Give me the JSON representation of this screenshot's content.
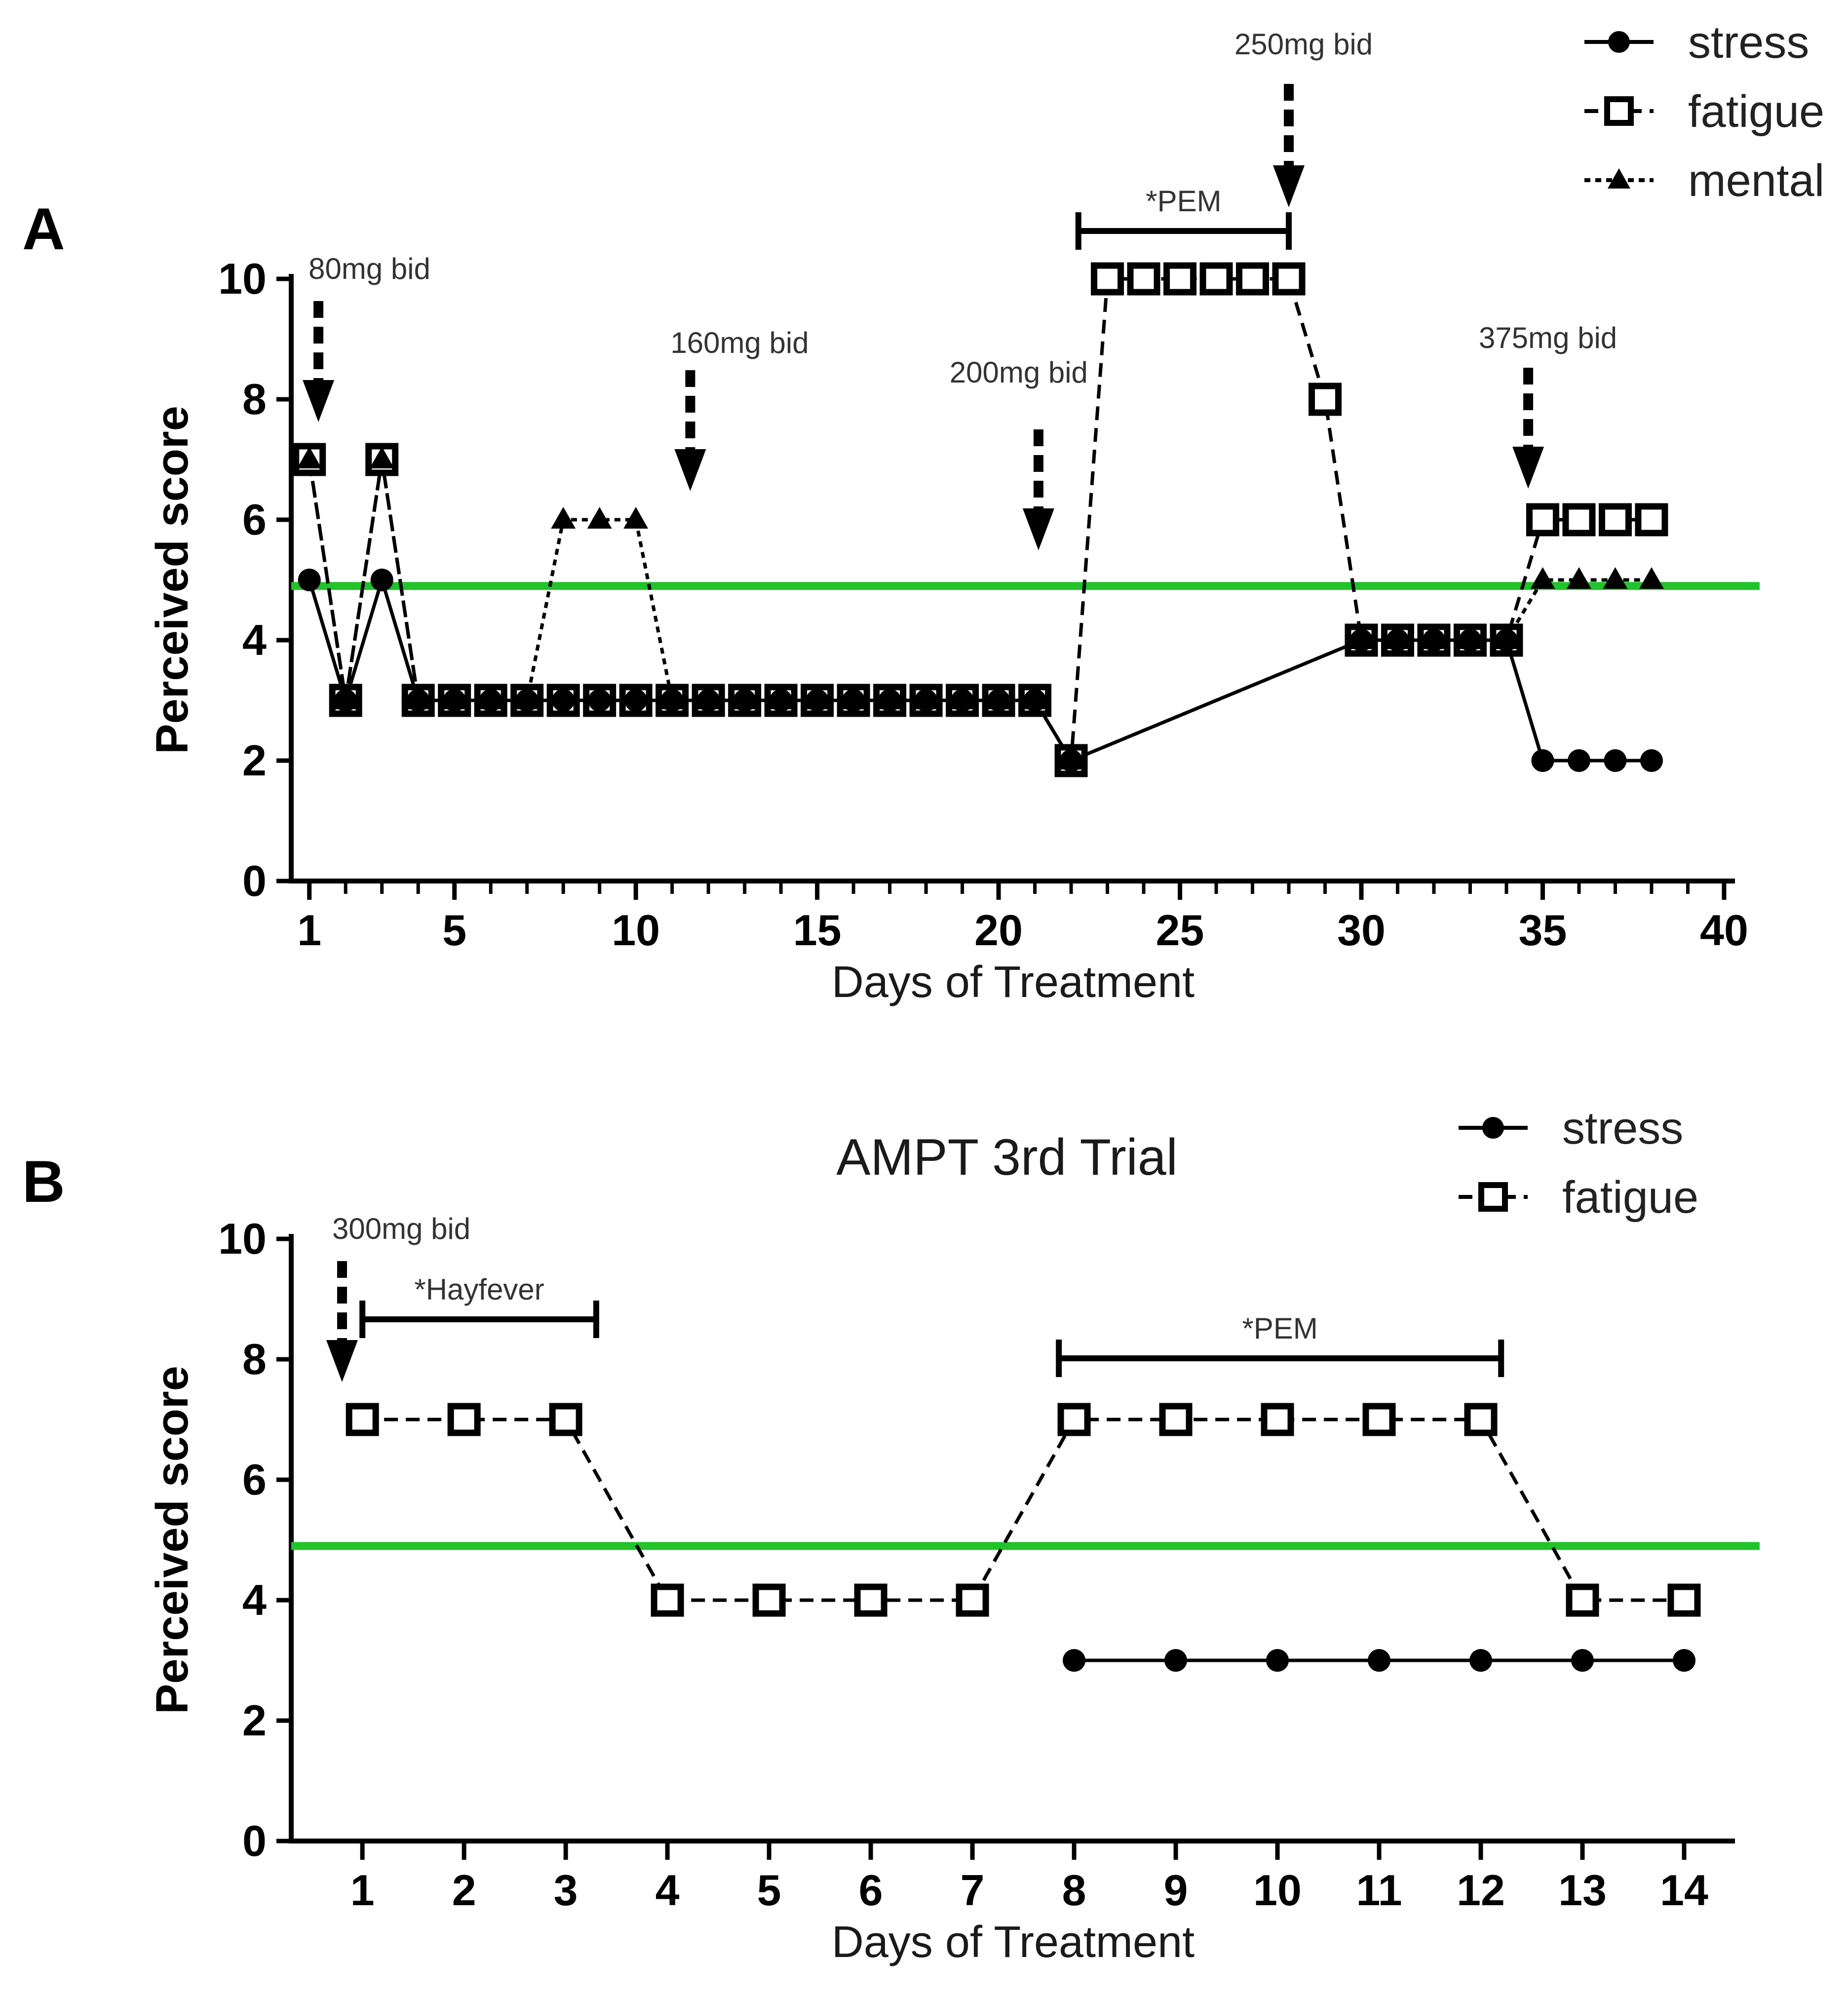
{
  "chart_data": [
    {
      "panel": "A",
      "type": "line",
      "title": "",
      "xlabel": "Days of Treatment",
      "ylabel": "Perceived score",
      "xlim": [
        0.5,
        40.3
      ],
      "ylim": [
        0,
        10
      ],
      "xticks": [
        1,
        5,
        10,
        15,
        20,
        25,
        30,
        35,
        40
      ],
      "yticks": [
        0,
        2,
        4,
        6,
        8,
        10
      ],
      "reference_line": {
        "y": 4.9,
        "color": "#22c22a"
      },
      "series": [
        {
          "name": "stress",
          "marker": "circle",
          "dash": "solid",
          "points": [
            [
              1,
              5
            ],
            [
              2,
              3
            ],
            [
              3,
              5
            ],
            [
              4,
              3
            ],
            [
              5,
              3
            ],
            [
              6,
              3
            ],
            [
              7,
              3
            ],
            [
              8,
              3
            ],
            [
              9,
              3
            ],
            [
              10,
              3
            ],
            [
              11,
              3
            ],
            [
              12,
              3
            ],
            [
              13,
              3
            ],
            [
              14,
              3
            ],
            [
              15,
              3
            ],
            [
              16,
              3
            ],
            [
              17,
              3
            ],
            [
              18,
              3
            ],
            [
              19,
              3
            ],
            [
              20,
              3
            ],
            [
              21,
              3
            ],
            [
              22,
              2
            ],
            [
              30,
              4
            ],
            [
              31,
              4
            ],
            [
              32,
              4
            ],
            [
              33,
              4
            ],
            [
              34,
              4
            ],
            [
              35,
              2
            ],
            [
              36,
              2
            ],
            [
              37,
              2
            ],
            [
              38,
              2
            ]
          ]
        },
        {
          "name": "fatigue",
          "marker": "open-square",
          "dash": "dashed",
          "points": [
            [
              1,
              7
            ],
            [
              2,
              3
            ],
            [
              3,
              7
            ],
            [
              4,
              3
            ],
            [
              5,
              3
            ],
            [
              6,
              3
            ],
            [
              7,
              3
            ],
            [
              8,
              3
            ],
            [
              9,
              3
            ],
            [
              10,
              3
            ],
            [
              11,
              3
            ],
            [
              12,
              3
            ],
            [
              13,
              3
            ],
            [
              14,
              3
            ],
            [
              15,
              3
            ],
            [
              16,
              3
            ],
            [
              17,
              3
            ],
            [
              18,
              3
            ],
            [
              19,
              3
            ],
            [
              20,
              3
            ],
            [
              21,
              3
            ],
            [
              22,
              2
            ],
            [
              23,
              10
            ],
            [
              24,
              10
            ],
            [
              25,
              10
            ],
            [
              26,
              10
            ],
            [
              27,
              10
            ],
            [
              28,
              10
            ],
            [
              29,
              8
            ],
            [
              30,
              4
            ],
            [
              31,
              4
            ],
            [
              32,
              4
            ],
            [
              33,
              4
            ],
            [
              34,
              4
            ],
            [
              35,
              6
            ],
            [
              36,
              6
            ],
            [
              37,
              6
            ],
            [
              38,
              6
            ]
          ]
        },
        {
          "name": "mental",
          "marker": "triangle",
          "dash": "dotted",
          "points": [
            [
              1,
              7
            ],
            [
              2,
              3
            ],
            [
              3,
              7
            ],
            [
              4,
              3
            ],
            [
              5,
              3
            ],
            [
              6,
              3
            ],
            [
              7,
              3
            ],
            [
              8,
              6
            ],
            [
              9,
              6
            ],
            [
              10,
              6
            ],
            [
              11,
              3
            ],
            [
              12,
              3
            ],
            [
              13,
              3
            ],
            [
              14,
              3
            ],
            [
              15,
              3
            ],
            [
              16,
              3
            ],
            [
              17,
              3
            ],
            [
              18,
              3
            ],
            [
              19,
              3
            ],
            [
              20,
              3
            ],
            [
              21,
              3
            ],
            [
              22,
              2
            ],
            [
              30,
              4
            ],
            [
              31,
              4
            ],
            [
              32,
              4
            ],
            [
              33,
              4
            ],
            [
              34,
              4
            ],
            [
              35,
              5
            ],
            [
              36,
              5
            ],
            [
              37,
              5
            ],
            [
              38,
              5
            ]
          ]
        }
      ],
      "dose_annotations": [
        {
          "label": "80mg bid",
          "x": 1.25
        },
        {
          "label": "160mg bid",
          "x": 11.5
        },
        {
          "label": "200mg bid",
          "x": 21.1
        },
        {
          "label": "250mg bid",
          "x": 28
        },
        {
          "label": "375mg bid",
          "x": 34.6
        }
      ],
      "event_brackets": [
        {
          "label": "*PEM",
          "x_start": 22.2,
          "x_end": 28
        }
      ],
      "legend": [
        "stress",
        "fatigue",
        "mental"
      ],
      "legend_position": "top-right"
    },
    {
      "panel": "B",
      "type": "line",
      "title": "AMPT 3rd Trial",
      "xlabel": "Days of Treatment",
      "ylabel": "Perceived score",
      "xlim": [
        0.3,
        14.5
      ],
      "ylim": [
        0,
        10
      ],
      "xticks": [
        1,
        2,
        3,
        4,
        5,
        6,
        7,
        8,
        9,
        10,
        11,
        12,
        13,
        14
      ],
      "yticks": [
        0,
        2,
        4,
        6,
        8,
        10
      ],
      "reference_line": {
        "y": 4.9,
        "color": "#22c22a"
      },
      "series": [
        {
          "name": "stress",
          "marker": "circle",
          "dash": "solid",
          "points": [
            [
              8,
              3
            ],
            [
              9,
              3
            ],
            [
              10,
              3
            ],
            [
              11,
              3
            ],
            [
              12,
              3
            ],
            [
              13,
              3
            ],
            [
              14,
              3
            ]
          ]
        },
        {
          "name": "fatigue",
          "marker": "open-square",
          "dash": "dashed",
          "points": [
            [
              1,
              7
            ],
            [
              2,
              7
            ],
            [
              3,
              7
            ],
            [
              4,
              4
            ],
            [
              5,
              4
            ],
            [
              6,
              4
            ],
            [
              7,
              4
            ],
            [
              8,
              7
            ],
            [
              9,
              7
            ],
            [
              10,
              7
            ],
            [
              11,
              7
            ],
            [
              12,
              7
            ],
            [
              13,
              4
            ],
            [
              14,
              4
            ]
          ]
        }
      ],
      "dose_annotations": [
        {
          "label": "300mg bid",
          "x": 0.8
        }
      ],
      "event_brackets": [
        {
          "label": "*Hayfever",
          "x_start": 1,
          "x_end": 3.3
        },
        {
          "label": "*PEM",
          "x_start": 7.85,
          "x_end": 12.2
        }
      ],
      "legend": [
        "stress",
        "fatigue"
      ],
      "legend_position": "top-right"
    }
  ],
  "panels": {
    "a": {
      "label": "A"
    },
    "b": {
      "label": "B"
    }
  }
}
